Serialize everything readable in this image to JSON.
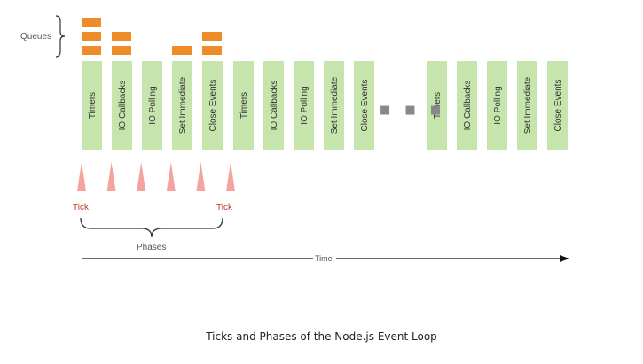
{
  "diagram": {
    "queues_label": "Queues",
    "phases_label": "Phases",
    "time_label": "Time",
    "tick_label": "Tick",
    "ellipsis": "■ ■ ■",
    "caption": "Ticks and Phases of the Node.js Event Loop",
    "phase_groups": [
      [
        "Timers",
        "IO Callbacks",
        "IO Polling",
        "Set Immediate",
        "Close Events"
      ],
      [
        "Timers",
        "IO Callbacks",
        "IO Polling",
        "Set Immediate",
        "Close Events"
      ],
      [
        "Timers",
        "IO Callbacks",
        "IO Polling",
        "Set Immediate",
        "Close Events"
      ]
    ],
    "queue_counts": [
      3,
      2,
      0,
      1,
      2
    ],
    "tick_markers": 6,
    "colors": {
      "phase_fill": "#c6e5ad",
      "queue_item": "#ee8c2a",
      "tick_triangle": "#f3a49d",
      "tick_text": "#c0392b",
      "axis": "#111111",
      "ellipsis": "#888888"
    }
  }
}
